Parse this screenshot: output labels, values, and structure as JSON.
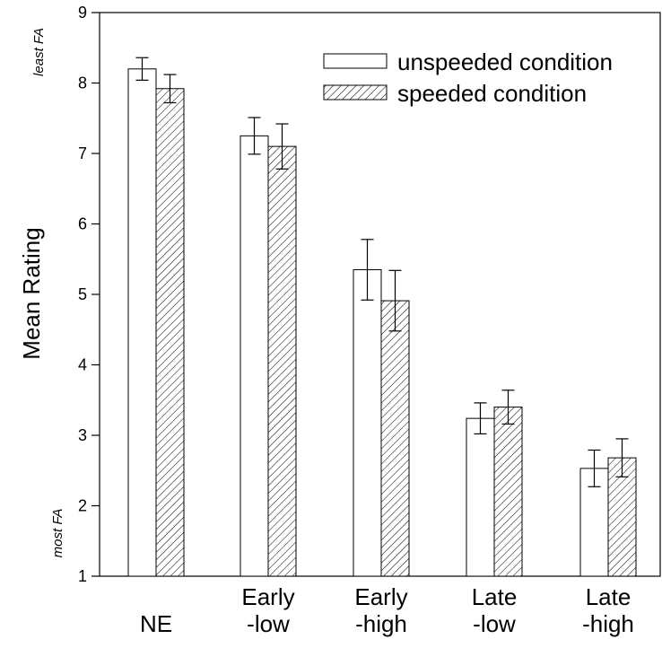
{
  "chart_data": {
    "type": "bar",
    "categories": [
      [
        "NE"
      ],
      [
        "Early",
        "-low"
      ],
      [
        "Early",
        "-high"
      ],
      [
        "Late",
        "-low"
      ],
      [
        "Late",
        "-high"
      ]
    ],
    "series": [
      {
        "name": "unspeeded condition",
        "pattern": "solid",
        "values": [
          8.2,
          7.25,
          5.35,
          3.24,
          2.53
        ],
        "error": [
          0.16,
          0.26,
          0.43,
          0.22,
          0.26
        ]
      },
      {
        "name": "speeded condition",
        "pattern": "hatched",
        "values": [
          7.92,
          7.1,
          4.91,
          3.4,
          2.68
        ],
        "error": [
          0.2,
          0.32,
          0.43,
          0.24,
          0.27
        ]
      }
    ],
    "ylabel": "Mean Rating",
    "ylim": [
      1,
      9
    ],
    "yticks": [
      1,
      2,
      3,
      4,
      5,
      6,
      7,
      8,
      9
    ],
    "y_annotations": {
      "top": "least FA",
      "bottom": "most FA"
    },
    "legend_position": "top-right",
    "grid": false,
    "colors": {
      "bar_fill": "#ffffff",
      "stroke": "#000000",
      "hatch": "#000000"
    }
  }
}
